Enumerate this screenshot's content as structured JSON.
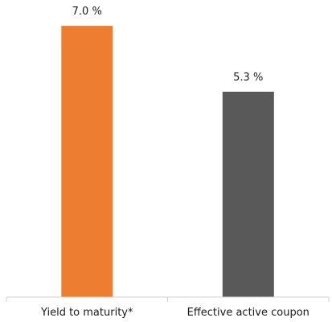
{
  "chart_data": {
    "type": "bar",
    "categories": [
      "Yield to maturity*",
      "Effective active coupon"
    ],
    "values": [
      7.0,
      5.3
    ],
    "value_labels": [
      "7.0 %",
      "5.3 %"
    ],
    "colors": [
      "#ED7D31",
      "#595959"
    ],
    "ylim": [
      0,
      7.5
    ],
    "grid": false,
    "title": "",
    "xlabel": "",
    "ylabel": ""
  }
}
